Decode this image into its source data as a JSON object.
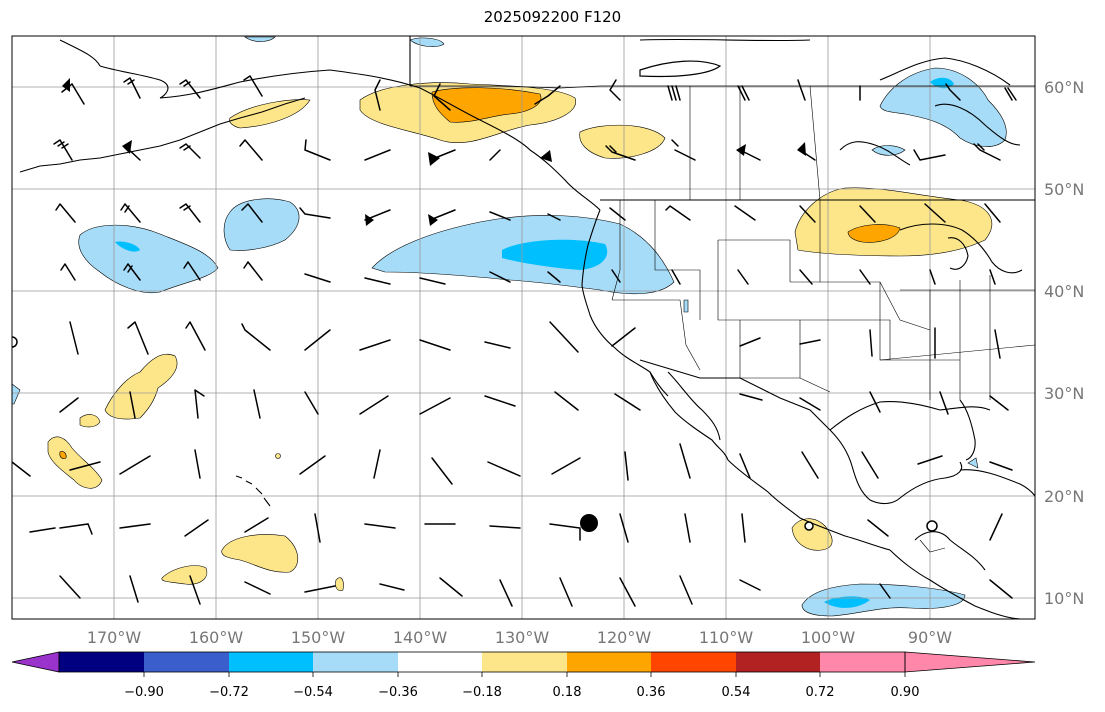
{
  "title": "2025092200 F120",
  "map": {
    "lon_labels": [
      "170°W",
      "160°W",
      "150°W",
      "140°W",
      "130°W",
      "120°W",
      "110°W",
      "100°W",
      "90°W"
    ],
    "lat_labels": [
      "60°N",
      "50°N",
      "40°N",
      "30°N",
      "20°N",
      "10°N"
    ]
  },
  "colorbar": {
    "ticks": [
      "−0.90",
      "−0.72",
      "−0.54",
      "−0.36",
      "−0.18",
      "0.18",
      "0.36",
      "0.54",
      "0.72",
      "0.90"
    ],
    "colors": [
      "#9933cc",
      "#000080",
      "#3a5fcd",
      "#00bfff",
      "#a6dcf7",
      "#ffffff",
      "#fde68a",
      "#ffa500",
      "#ff4500",
      "#b22222",
      "#ff88aa"
    ]
  }
}
